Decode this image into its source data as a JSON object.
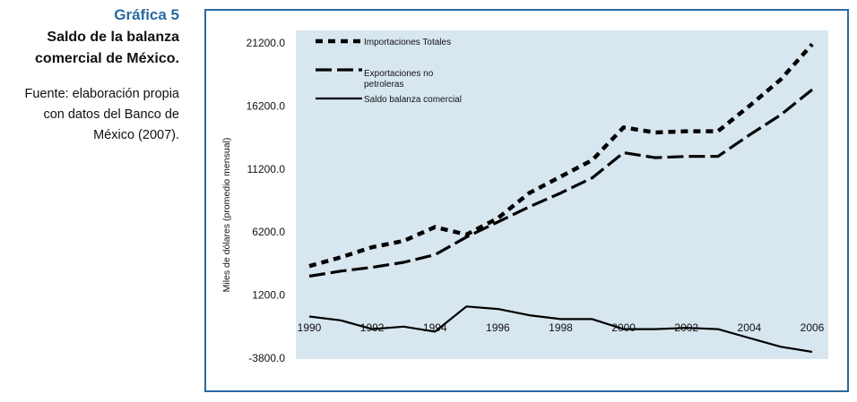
{
  "caption": {
    "number": "Gráfica 5",
    "title_line1": "Saldo de la balanza",
    "title_line2": "comercial de México.",
    "source_line1": "Fuente: elaboración propia",
    "source_line2": "con datos del Banco de",
    "source_line3": "México (2007)."
  },
  "chart_data": {
    "type": "line",
    "title": "",
    "xlabel": "",
    "ylabel": "Miles de dólares (promedio mensual)",
    "xlim": [
      1990,
      2006
    ],
    "ylim": [
      -3800,
      21200
    ],
    "yticks": [
      "21200.0",
      "16200.0",
      "11200.0",
      "6200.0",
      "1200.0",
      "-3800.0"
    ],
    "yticks_values": [
      21200,
      16200,
      11200,
      6200,
      1200,
      -3800
    ],
    "xticks": [
      "1990",
      "1992",
      "1994",
      "1996",
      "1998",
      "2000",
      "2002",
      "2004",
      "2006"
    ],
    "xticks_values": [
      1990,
      1992,
      1994,
      1996,
      1998,
      2000,
      2002,
      2004,
      2006
    ],
    "grid": false,
    "legend_position": "top-left",
    "plot_background": "#d8e6f0",
    "x": [
      1990,
      1991,
      1992,
      1993,
      1994,
      1995,
      1996,
      1997,
      1998,
      1999,
      2000,
      2001,
      2002,
      2003,
      2004,
      2005,
      2006
    ],
    "series": [
      {
        "name": "Importaciones Totales",
        "style": "dotted-thick",
        "values": [
          3500,
          4200,
          5000,
          5500,
          6600,
          6000,
          7300,
          9300,
          10600,
          11900,
          14500,
          14100,
          14200,
          14200,
          16200,
          18300,
          21100
        ]
      },
      {
        "name": "Exportaciones no petroleras",
        "style": "dashed",
        "values": [
          2700,
          3100,
          3400,
          3800,
          4400,
          5800,
          7000,
          8200,
          9300,
          10500,
          12500,
          12100,
          12200,
          12200,
          13900,
          15500,
          17500
        ]
      },
      {
        "name": "Saldo balanza comercial",
        "style": "solid",
        "values": [
          -500,
          -800,
          -1500,
          -1300,
          -1700,
          300,
          100,
          -400,
          -700,
          -700,
          -1500,
          -1500,
          -1400,
          -1500,
          -2200,
          -2900,
          -3300
        ]
      }
    ]
  }
}
